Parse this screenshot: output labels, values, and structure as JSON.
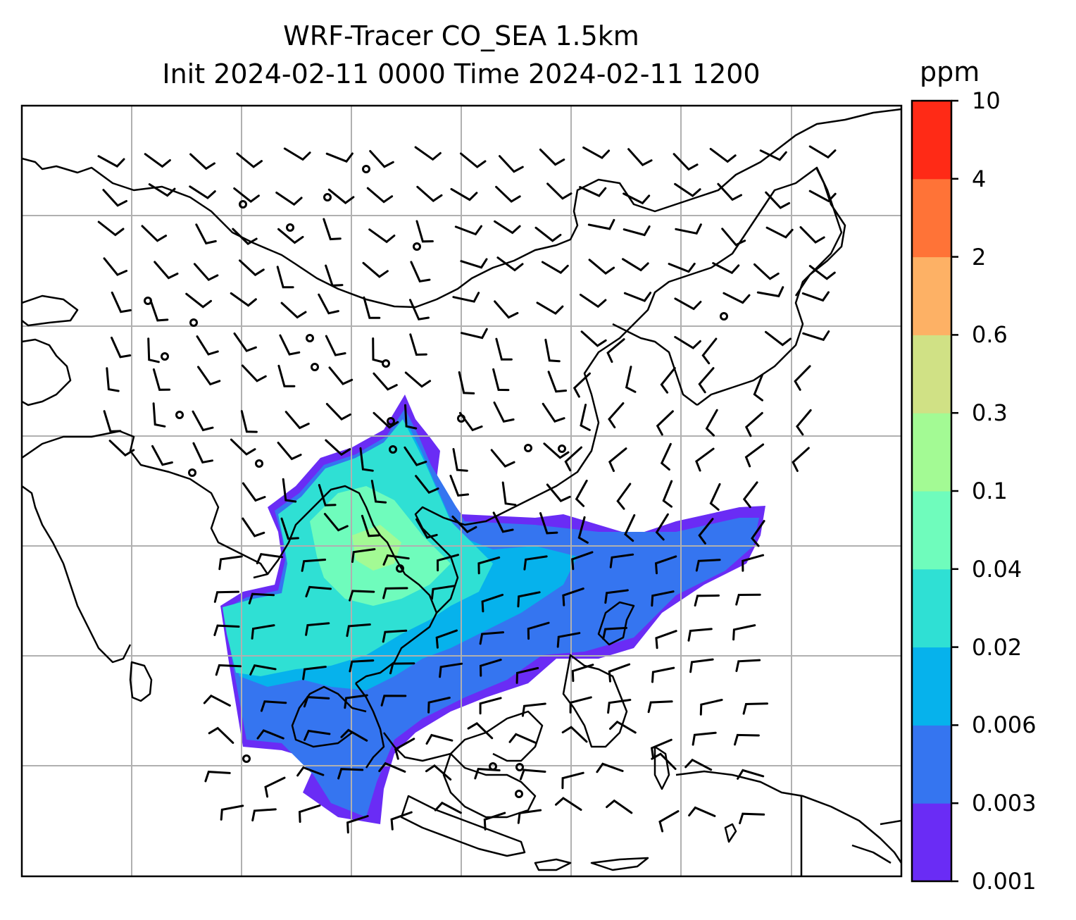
{
  "title": {
    "line1": "WRF-Tracer CO_SEA 1.5km",
    "line2": "Init 2024-02-11 0000 Time 2024-02-11 1200"
  },
  "colorbar": {
    "unit": "ppm",
    "ticks": [
      "0.001",
      "0.003",
      "0.006",
      "0.02",
      "0.04",
      "0.1",
      "0.3",
      "0.6",
      "2",
      "4",
      "10"
    ],
    "colors": [
      "#6a2cf5",
      "#3575f0",
      "#06b2ec",
      "#2fe0d4",
      "#6ffcbc",
      "#a3fa94",
      "#d0e185",
      "#fdb165",
      "#ff7337",
      "#ff2a16"
    ]
  },
  "map": {
    "gridlines": true,
    "coastlines_color": "#000000",
    "gridline_color": "#b0b0b0"
  }
}
